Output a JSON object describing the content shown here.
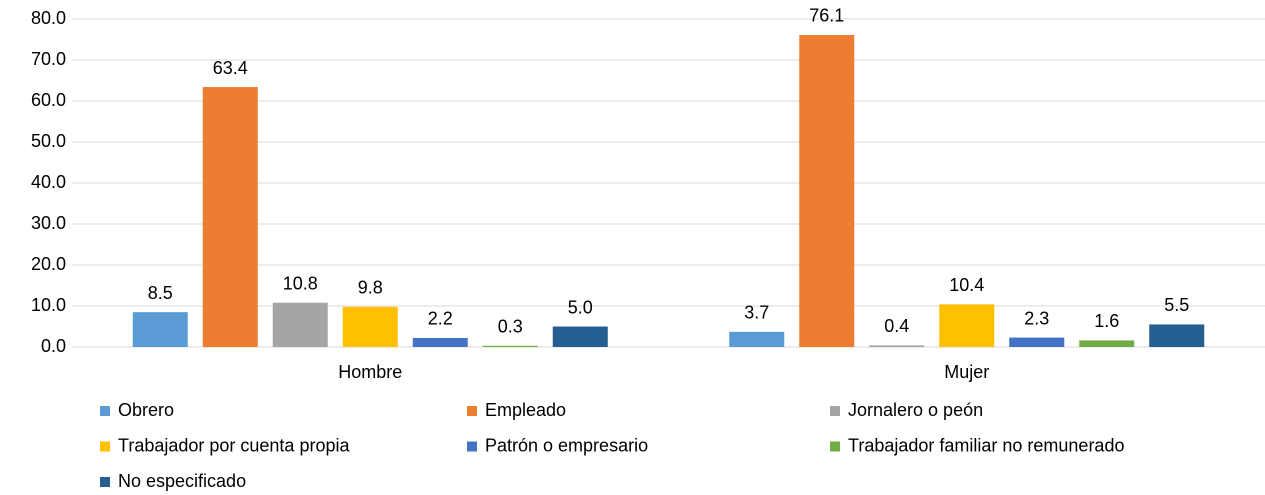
{
  "chart_data": {
    "type": "bar",
    "categories": [
      "Hombre",
      "Mujer"
    ],
    "series": [
      {
        "name": "Obrero",
        "color": "#5b9bd5",
        "values": [
          8.5,
          3.7
        ],
        "value_labels": [
          "8.5",
          "3.7"
        ]
      },
      {
        "name": "Empleado",
        "color": "#ed7d31",
        "values": [
          63.4,
          76.1
        ],
        "value_labels": [
          "63.4",
          "76.1"
        ]
      },
      {
        "name": "Jornalero o peón",
        "color": "#a5a5a5",
        "values": [
          10.8,
          0.4
        ],
        "value_labels": [
          "10.8",
          "0.4"
        ]
      },
      {
        "name": "Trabajador por cuenta propia",
        "color": "#ffc000",
        "values": [
          9.8,
          10.4
        ],
        "value_labels": [
          "9.8",
          "10.4"
        ]
      },
      {
        "name": "Patrón o empresario",
        "color": "#4472c4",
        "values": [
          2.2,
          2.3
        ],
        "value_labels": [
          "2.2",
          "2.3"
        ]
      },
      {
        "name": "Trabajador familiar no remunerado",
        "color": "#70ad47",
        "values": [
          0.3,
          1.6
        ],
        "value_labels": [
          "0.3",
          "1.6"
        ]
      },
      {
        "name": "No especificado",
        "color": "#255e91",
        "values": [
          5.0,
          5.5
        ],
        "value_labels": [
          "5.0",
          "5.5"
        ]
      }
    ],
    "ylim": [
      0,
      80
    ],
    "yticks": [
      {
        "value": 0,
        "label": "0.0"
      },
      {
        "value": 10,
        "label": "10.0"
      },
      {
        "value": 20,
        "label": "20.0"
      },
      {
        "value": 30,
        "label": "30.0"
      },
      {
        "value": 40,
        "label": "40.0"
      },
      {
        "value": 50,
        "label": "50.0"
      },
      {
        "value": 60,
        "label": "60.0"
      },
      {
        "value": 70,
        "label": "70.0"
      },
      {
        "value": 80,
        "label": "80.0"
      }
    ],
    "grid": true,
    "legend": "bottom"
  }
}
